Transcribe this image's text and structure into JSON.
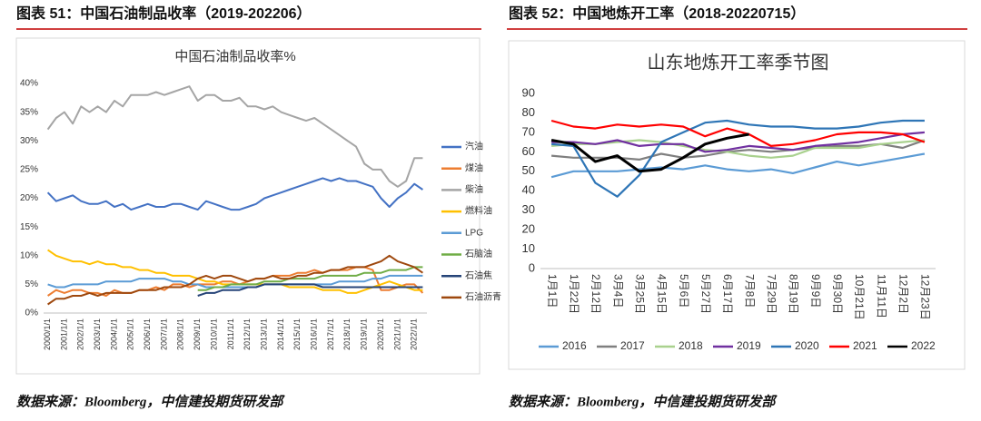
{
  "chart_data": [
    {
      "type": "line",
      "caption": "图表 51：中国石油制品收率（2019-202206）",
      "source": "数据来源：Bloomberg，中信建投期货研发部",
      "title": "中国石油制品收率%",
      "categories": [
        "2000/1/1",
        null,
        "2001/1/1",
        null,
        "2002/1/1",
        null,
        "2003/1/1",
        null,
        "2004/1/1",
        null,
        "2005/1/1",
        null,
        "2006/1/1",
        null,
        "2007/1/1",
        null,
        "2008/1/1",
        null,
        "2009/1/1",
        null,
        "2010/1/1",
        null,
        "2011/1/1",
        null,
        "2012/1/1",
        null,
        "2013/1/1",
        null,
        "2014/1/1",
        null,
        "2015/1/1",
        null,
        "2016/1/1",
        null,
        "2017/1/1",
        null,
        "2018/1/1",
        null,
        "2019/1/1",
        null,
        "2020/1/1",
        null,
        "2021/1/1",
        null,
        "2022/1/1",
        null
      ],
      "ylim": [
        0,
        40
      ],
      "yticks": [
        {
          "value": 0,
          "label": "0%"
        },
        {
          "value": 5,
          "label": "5%"
        },
        {
          "value": 10,
          "label": "10%"
        },
        {
          "value": 15,
          "label": "15%"
        },
        {
          "value": 20,
          "label": "20%"
        },
        {
          "value": 25,
          "label": "25%"
        },
        {
          "value": 30,
          "label": "30%"
        },
        {
          "value": 35,
          "label": "35%"
        },
        {
          "value": 40,
          "label": "40%"
        }
      ],
      "grid": false,
      "legend": "right",
      "series": [
        {
          "name": "汽油",
          "color": "#4472c4",
          "values": [
            21,
            19.5,
            20,
            20.5,
            19.5,
            19,
            19,
            19.5,
            18.5,
            19,
            18,
            18.5,
            19,
            18.5,
            18.5,
            19,
            19,
            18.5,
            18,
            19.5,
            19,
            18.5,
            18,
            18,
            18.5,
            19,
            20,
            20.5,
            21,
            21.5,
            22,
            22.5,
            23,
            23.5,
            23,
            23.5,
            23,
            23,
            22.5,
            22,
            20,
            18.5,
            20,
            21,
            22.5,
            21.5
          ]
        },
        {
          "name": "煤油",
          "color": "#ed7d31",
          "values": [
            3,
            4,
            3.5,
            4,
            4,
            3.5,
            3.5,
            3,
            4,
            3.5,
            3.5,
            4,
            4,
            4.5,
            4,
            5,
            5,
            4.5,
            5,
            5,
            5,
            5.5,
            5.5,
            5,
            5.5,
            6,
            6,
            6.5,
            6.5,
            6.5,
            7,
            7,
            7.5,
            7,
            7.5,
            7.5,
            7.5,
            8,
            8,
            7.5,
            4,
            4,
            4.5,
            5,
            5,
            3.5
          ]
        },
        {
          "name": "柴油",
          "color": "#a5a5a5",
          "values": [
            32,
            34,
            35,
            33,
            36,
            35,
            36,
            35,
            37,
            36,
            38,
            38,
            38,
            38.5,
            38,
            38.5,
            39,
            39.5,
            37,
            38,
            38,
            37,
            37,
            37.5,
            36,
            36,
            35.5,
            36,
            35,
            34.5,
            34,
            33.5,
            34,
            33,
            32,
            31,
            30,
            29,
            26,
            25,
            25,
            23,
            22,
            23,
            27,
            27
          ]
        },
        {
          "name": "燃料油",
          "color": "#ffc000",
          "values": [
            11,
            10,
            9.5,
            9,
            9,
            8.5,
            9,
            8.5,
            8.5,
            8,
            8,
            7.5,
            7.5,
            7,
            7,
            6.5,
            6.5,
            6.5,
            6,
            5.5,
            5.5,
            5,
            5,
            5,
            5,
            5,
            5,
            5,
            5,
            4.5,
            4.5,
            4.5,
            4.5,
            4,
            4,
            4,
            3.5,
            3.5,
            4,
            4.5,
            5,
            5.5,
            5,
            4.5,
            4,
            4
          ]
        },
        {
          "name": "LPG",
          "color": "#5b9bd5",
          "values": [
            5,
            4.5,
            4.5,
            5,
            5,
            5,
            5,
            5.5,
            5.5,
            5.5,
            5.5,
            6,
            6,
            6,
            6,
            5.5,
            5.5,
            5,
            5,
            4.5,
            4.5,
            4.5,
            4.5,
            4.5,
            4.5,
            4.5,
            5,
            5,
            5,
            5,
            5,
            5,
            5,
            5,
            5,
            5.5,
            5.5,
            5.5,
            5.5,
            6,
            6,
            6.5,
            6.5,
            6.5,
            6.5,
            6.5
          ]
        },
        {
          "name": "石脑油",
          "color": "#70ad47",
          "values": [
            null,
            null,
            null,
            null,
            null,
            null,
            null,
            null,
            null,
            null,
            null,
            null,
            null,
            null,
            null,
            null,
            null,
            null,
            4,
            4,
            4.5,
            4.5,
            5,
            5,
            5,
            5,
            5.5,
            5.5,
            5.5,
            6,
            6,
            6,
            6,
            6.5,
            6.5,
            6.5,
            6.5,
            6.5,
            7,
            7,
            7,
            7.5,
            7.5,
            7.5,
            8,
            8
          ]
        },
        {
          "name": "石油焦",
          "color": "#264478",
          "values": [
            null,
            null,
            null,
            null,
            null,
            null,
            null,
            null,
            null,
            null,
            null,
            null,
            null,
            null,
            null,
            null,
            null,
            null,
            3,
            3.5,
            3.5,
            4,
            4,
            4,
            4.5,
            4.5,
            5,
            5,
            5,
            5,
            5,
            5,
            5,
            4.5,
            4.5,
            4.5,
            4.5,
            4.5,
            4.5,
            4.5,
            4.5,
            4.5,
            4.5,
            4.5,
            4.5,
            4.5
          ]
        },
        {
          "name": "石油沥青",
          "color": "#9e480e",
          "values": [
            1.5,
            2.5,
            2.5,
            3,
            3,
            3.5,
            3,
            3.5,
            3.5,
            3.5,
            3.5,
            4,
            4,
            4,
            4.5,
            4.5,
            4.5,
            5,
            6,
            6.5,
            6,
            6.5,
            6.5,
            6,
            5.5,
            6,
            6,
            6.5,
            6,
            6,
            6.5,
            6.5,
            7,
            7,
            7.5,
            7.5,
            8,
            8,
            8,
            8.5,
            9,
            10,
            9,
            8.5,
            8,
            7
          ]
        }
      ]
    },
    {
      "type": "line",
      "caption": "图表 52：中国地炼开工率（2018-20220715）",
      "source": "数据来源：Bloomberg，中信建投期货研发部",
      "title": "山东地炼开工率季节图",
      "categories": [
        "1月1日",
        "1月22日",
        "2月12日",
        "3月4日",
        "3月25日",
        "4月15日",
        "5月6日",
        "5月27日",
        "6月17日",
        "7月8日",
        "7月29日",
        "8月19日",
        "9月9日",
        "9月30日",
        "10月21日",
        "11月11日",
        "12月2日",
        "12月23日"
      ],
      "ylim": [
        0,
        90
      ],
      "yticks": [
        0,
        10,
        20,
        30,
        40,
        50,
        60,
        70,
        80,
        90
      ],
      "grid": false,
      "legend": "bottom",
      "series": [
        {
          "name": "2016",
          "color": "#5b9bd5",
          "values": [
            47,
            50,
            50,
            50,
            51,
            52,
            51,
            53,
            51,
            50,
            51,
            49,
            52,
            55,
            53,
            55,
            57,
            59
          ]
        },
        {
          "name": "2017",
          "color": "#7f7f7f",
          "values": [
            58,
            57,
            57,
            57,
            56,
            59,
            57,
            58,
            60,
            61,
            60,
            61,
            62,
            63,
            63,
            64,
            62,
            66
          ]
        },
        {
          "name": "2018",
          "color": "#a9d18e",
          "values": [
            63,
            64,
            64,
            65,
            66,
            65,
            63,
            61,
            60,
            58,
            57,
            58,
            62,
            62,
            62,
            64,
            65,
            66
          ]
        },
        {
          "name": "2019",
          "color": "#7030a0",
          "values": [
            65,
            65,
            64,
            66,
            63,
            64,
            64,
            60,
            61,
            63,
            62,
            61,
            63,
            64,
            65,
            67,
            69,
            70
          ]
        },
        {
          "name": "2020",
          "color": "#2e75b6",
          "values": [
            64,
            63,
            44,
            37,
            48,
            65,
            70,
            75,
            76,
            74,
            73,
            73,
            72,
            72,
            73,
            75,
            76,
            76
          ]
        },
        {
          "name": "2021",
          "color": "#ff0000",
          "values": [
            76,
            73,
            72,
            74,
            73,
            74,
            73,
            68,
            72,
            69,
            63,
            64,
            66,
            69,
            70,
            70,
            69,
            65
          ]
        },
        {
          "name": "2022",
          "color": "#000000",
          "values": [
            66,
            64,
            55,
            58,
            50,
            51,
            57,
            64,
            67,
            69,
            null,
            null,
            null,
            null,
            null,
            null,
            null,
            null
          ]
        }
      ]
    }
  ]
}
